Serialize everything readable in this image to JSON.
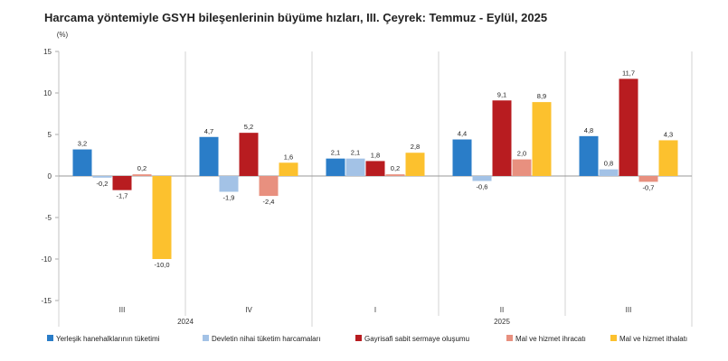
{
  "title": "Harcama yöntemiyle GSYH bileşenlerinin büyüme hızları, III. Çeyrek: Temmuz - Eylül, 2025",
  "chart_data": {
    "type": "bar",
    "title": "Harcama yöntemiyle GSYH bileşenlerinin büyüme hızları, III. Çeyrek: Temmuz - Eylül, 2025",
    "unit_label": "(%)",
    "ylim": [
      -15,
      15
    ],
    "yticks": [
      -15,
      -10,
      -5,
      0,
      5,
      10,
      15
    ],
    "grid": false,
    "legend_position": "bottom",
    "categories": [
      "III",
      "IV",
      "I",
      "II",
      "III"
    ],
    "year_groups": [
      {
        "label": "2024",
        "categories": [
          "III",
          "IV"
        ]
      },
      {
        "label": "2025",
        "categories": [
          "I",
          "II",
          "III"
        ]
      }
    ],
    "series": [
      {
        "name": "Yerleşik hanehalklarının tüketimi",
        "color": "#2a7dc8",
        "values": [
          3.2,
          4.7,
          2.1,
          4.4,
          4.8
        ],
        "labels": [
          "3,2",
          "4,7",
          "2,1",
          "4,4",
          "4,8"
        ]
      },
      {
        "name": "Devletin nihai tüketim harcamaları",
        "color": "#a3c2e6",
        "values": [
          -0.2,
          -1.9,
          2.1,
          -0.6,
          0.8
        ],
        "labels": [
          "-0,2",
          "-1,9",
          "2,1",
          "-0,6",
          "0,8"
        ]
      },
      {
        "name": "Gayrisafi sabit sermaye oluşumu",
        "color": "#b81c20",
        "values": [
          -1.7,
          5.2,
          1.8,
          9.1,
          11.7
        ],
        "labels": [
          "-1,7",
          "5,2",
          "1,8",
          "9,1",
          "11,7"
        ]
      },
      {
        "name": "Mal ve hizmet ihracatı",
        "color": "#e8907f",
        "values": [
          0.2,
          -2.4,
          0.2,
          2.0,
          -0.7
        ],
        "labels": [
          "0,2",
          "-2,4",
          "0,2",
          "2,0",
          "-0,7"
        ]
      },
      {
        "name": "Mal ve hizmet ithalatı",
        "color": "#fcc12e",
        "values": [
          -10.0,
          1.6,
          2.8,
          8.9,
          4.3
        ],
        "labels": [
          "-10,0",
          "1,6",
          "2,8",
          "8,9",
          "4,3"
        ]
      }
    ]
  }
}
